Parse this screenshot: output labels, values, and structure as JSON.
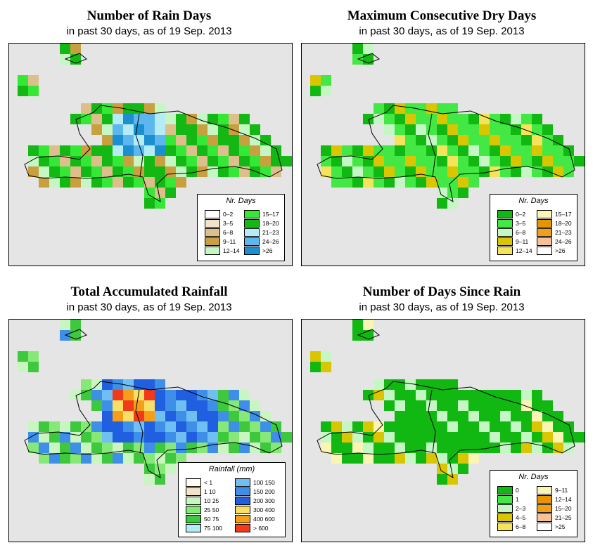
{
  "panels": [
    {
      "title": "Number of Rain Days",
      "subtitle": "in past 30 days, as of  19 Sep. 2013",
      "legend": {
        "title": "Nr. Days",
        "items": [
          {
            "label": "0–2",
            "color": "#ffffff"
          },
          {
            "label": "3–5",
            "color": "#f1e2c8"
          },
          {
            "label": "6–8",
            "color": "#dcbf8a"
          },
          {
            "label": "9–11",
            "color": "#c9a040"
          },
          {
            "label": "12–14",
            "color": "#c5f7c5"
          },
          {
            "label": "15–17",
            "color": "#36e836"
          },
          {
            "label": "18–20",
            "color": "#14b814"
          },
          {
            "label": "21–23",
            "color": "#b4ecf5"
          },
          {
            "label": "24–26",
            "color": "#5cb7ee"
          },
          {
            "label": ">26",
            "color": "#1b8fd0"
          }
        ]
      }
    },
    {
      "title": "Maximum Consecutive Dry Days",
      "subtitle": "in past 30 days, as of  19 Sep. 2013",
      "legend": {
        "title": "Nr. Days",
        "items": [
          {
            "label": "0–2",
            "color": "#12b812"
          },
          {
            "label": "3–5",
            "color": "#44e844"
          },
          {
            "label": "6–8",
            "color": "#c5f7c5"
          },
          {
            "label": "9–11",
            "color": "#d9c600"
          },
          {
            "label": "12–14",
            "color": "#f6e35c"
          },
          {
            "label": "15–17",
            "color": "#fbf5b4"
          },
          {
            "label": "18–20",
            "color": "#e69400"
          },
          {
            "label": "21–23",
            "color": "#f29e1a"
          },
          {
            "label": "24–26",
            "color": "#f8c196"
          },
          {
            "label": ">26",
            "color": "#ffffff"
          }
        ]
      }
    },
    {
      "title": "Total Accumulated Rainfall",
      "subtitle": "in past 30 days, as of  19 Sep. 2013",
      "legend": {
        "title": "Rainfall (mm)",
        "items": [
          {
            "label": "< 1",
            "color": "#fffcf5"
          },
          {
            "label": "1    10",
            "color": "#f1e2c8"
          },
          {
            "label": "10    25",
            "color": "#c9f5c0"
          },
          {
            "label": "25    50",
            "color": "#86e876"
          },
          {
            "label": "50    75",
            "color": "#3ec83e"
          },
          {
            "label": "75  100",
            "color": "#b4ecf5"
          },
          {
            "label": "100  150",
            "color": "#6fbff2"
          },
          {
            "label": "150  200",
            "color": "#3d8fe8"
          },
          {
            "label": "200  300",
            "color": "#1f5fe0"
          },
          {
            "label": "300  400",
            "color": "#f8e068"
          },
          {
            "label": "400  600",
            "color": "#f59e1a"
          },
          {
            "label": "> 600",
            "color": "#f03a1a"
          }
        ]
      }
    },
    {
      "title": "Number of Days Since Rain",
      "subtitle": "in past 30 days, as of  19 Sep. 2013",
      "legend": {
        "title": "Nr. Days",
        "items": [
          {
            "label": "0",
            "color": "#12b812"
          },
          {
            "label": "1",
            "color": "#44e844"
          },
          {
            "label": "2–3",
            "color": "#c5f7c5"
          },
          {
            "label": "4–5",
            "color": "#d9c600"
          },
          {
            "label": "6–8",
            "color": "#f6e35c"
          },
          {
            "label": "9–11",
            "color": "#fbf5b4"
          },
          {
            "label": "12–14",
            "color": "#e69400"
          },
          {
            "label": "15–20",
            "color": "#f29e1a"
          },
          {
            "label": "21–25",
            "color": "#f8c196"
          },
          {
            "label": ">25",
            "color": "#ffffff"
          }
        ]
      }
    }
  ]
}
